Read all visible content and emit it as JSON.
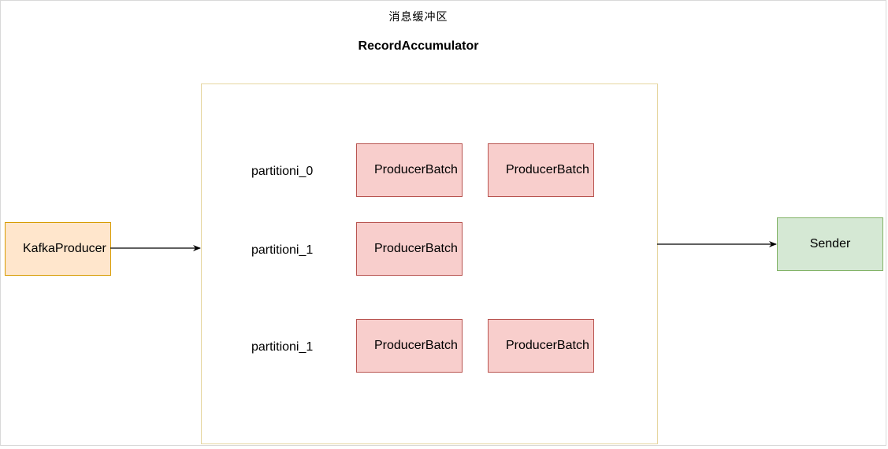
{
  "diagram": {
    "title_cn": "消息缓冲区",
    "title_en": "RecordAccumulator",
    "producer": {
      "label": "KafkaProducer"
    },
    "sender": {
      "label": "Sender"
    },
    "partitions": [
      {
        "label": "partitioni_0",
        "batches": [
          "ProducerBatch",
          "ProducerBatch"
        ]
      },
      {
        "label": "partitioni_1",
        "batches": [
          "ProducerBatch"
        ]
      },
      {
        "label": "partitioni_1",
        "batches": [
          "ProducerBatch",
          "ProducerBatch"
        ]
      }
    ]
  },
  "colors": {
    "producer_fill": "#ffe6cc",
    "producer_stroke": "#d79b00",
    "sender_fill": "#d5e8d4",
    "sender_stroke": "#82b366",
    "batch_fill": "#f8cecc",
    "batch_stroke": "#b85450",
    "container_stroke": "#e6d6a0"
  }
}
